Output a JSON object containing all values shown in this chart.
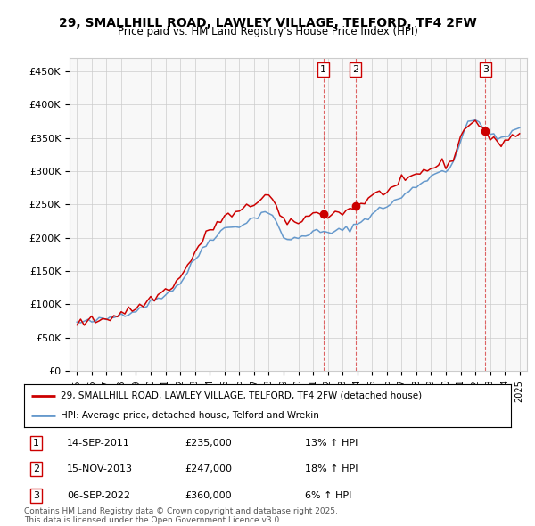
{
  "title": "29, SMALLHILL ROAD, LAWLEY VILLAGE, TELFORD, TF4 2FW",
  "subtitle": "Price paid vs. HM Land Registry's House Price Index (HPI)",
  "legend_line1": "29, SMALLHILL ROAD, LAWLEY VILLAGE, TELFORD, TF4 2FW (detached house)",
  "legend_line2": "HPI: Average price, detached house, Telford and Wrekin",
  "footer1": "Contains HM Land Registry data © Crown copyright and database right 2025.",
  "footer2": "This data is licensed under the Open Government Licence v3.0.",
  "t1_year": 2011.7,
  "t1_price": 235000,
  "t2_year": 2013.88,
  "t2_price": 247000,
  "t3_year": 2022.68,
  "t3_price": 360000,
  "ylim": [
    0,
    470000
  ],
  "yticks": [
    0,
    50000,
    100000,
    150000,
    200000,
    250000,
    300000,
    350000,
    400000,
    450000
  ],
  "ytick_labels": [
    "£0",
    "£50K",
    "£100K",
    "£150K",
    "£200K",
    "£250K",
    "£300K",
    "£350K",
    "£400K",
    "£450K"
  ],
  "red_color": "#cc0000",
  "blue_color": "#6699cc",
  "bg_color": "#ffffff",
  "plot_bg_color": "#f8f8f8",
  "row_data": [
    [
      "1",
      "14-SEP-2011",
      "£235,000",
      "13% ↑ HPI"
    ],
    [
      "2",
      "15-NOV-2013",
      "£247,000",
      "18% ↑ HPI"
    ],
    [
      "3",
      "06-SEP-2022",
      "£360,000",
      "6% ↑ HPI"
    ]
  ]
}
